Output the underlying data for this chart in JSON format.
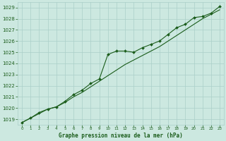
{
  "title": "Graphe pression niveau de la mer (hPa)",
  "background_color": "#cce8e0",
  "grid_color": "#aacfc8",
  "line_color": "#1a5c1a",
  "x_labels": [
    "0",
    "1",
    "2",
    "3",
    "4",
    "5",
    "6",
    "7",
    "8",
    "9",
    "10",
    "11",
    "12",
    "13",
    "14",
    "15",
    "16",
    "17",
    "18",
    "19",
    "20",
    "21",
    "22",
    "23"
  ],
  "ylim": [
    1018.5,
    1029.5
  ],
  "yticks": [
    1019,
    1020,
    1021,
    1022,
    1023,
    1024,
    1025,
    1026,
    1027,
    1028,
    1029
  ],
  "series_smooth": [
    1018.7,
    1019.1,
    1019.5,
    1019.9,
    1020.1,
    1020.5,
    1021.0,
    1021.4,
    1021.9,
    1022.4,
    1022.9,
    1023.4,
    1023.9,
    1024.3,
    1024.7,
    1025.1,
    1025.5,
    1026.0,
    1026.5,
    1027.0,
    1027.5,
    1028.0,
    1028.4,
    1028.8
  ],
  "series_data": [
    1018.7,
    1019.1,
    1019.6,
    1019.9,
    1020.1,
    1020.6,
    1021.2,
    1021.6,
    1022.2,
    1022.6,
    1024.8,
    1025.1,
    1025.1,
    1025.0,
    1025.4,
    1025.7,
    1026.0,
    1026.6,
    1027.2,
    1027.5,
    1028.1,
    1028.2,
    1028.5,
    1029.1
  ]
}
